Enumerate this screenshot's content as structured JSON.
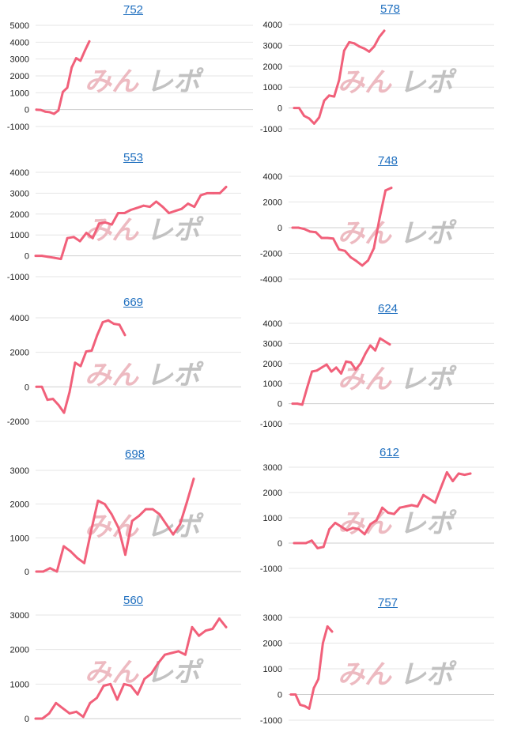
{
  "colors": {
    "line": "#f1607a",
    "title_link": "#1f6fbf",
    "grid": "#e6e6e6"
  },
  "watermark": "みんレポ",
  "chart_data": [
    {
      "type": "line",
      "title": "752",
      "yticks": [
        5000,
        4000,
        3000,
        2000,
        1000,
        0,
        -1000
      ],
      "ylim": [
        -1000,
        5000
      ],
      "values": [
        0,
        -20,
        -120,
        -150,
        -250,
        -50,
        1050,
        1300,
        2500,
        3050,
        2900,
        3500,
        4050
      ]
    },
    {
      "type": "line",
      "title": "578",
      "yticks": [
        4000,
        3000,
        2000,
        1000,
        0,
        -1000
      ],
      "ylim": [
        -1000,
        4000
      ],
      "values": [
        0,
        0,
        -380,
        -500,
        -750,
        -450,
        350,
        600,
        550,
        1350,
        2750,
        3150,
        3100,
        2950,
        2850,
        2700,
        2950,
        3400,
        3700
      ]
    },
    {
      "type": "line",
      "title": "553",
      "yticks": [
        4000,
        3000,
        2000,
        1000,
        0,
        -1000
      ],
      "ylim": [
        -1000,
        4000
      ],
      "values": [
        0,
        0,
        -50,
        -100,
        -150,
        850,
        900,
        700,
        1100,
        850,
        1550,
        1600,
        1500,
        2050,
        2050,
        2200,
        2300,
        2400,
        2350,
        2600,
        2350,
        2050,
        2150,
        2250,
        2500,
        2350,
        2900,
        3000,
        3000,
        3000,
        3300
      ]
    },
    {
      "type": "line",
      "title": "748",
      "yticks": [
        4000,
        2000,
        0,
        -2000,
        -4000
      ],
      "ylim": [
        -4000,
        4000
      ],
      "values": [
        0,
        0,
        -100,
        -300,
        -350,
        -800,
        -800,
        -850,
        -1700,
        -1800,
        -2300,
        -2600,
        -2950,
        -2550,
        -1600,
        800,
        2900,
        3100
      ]
    },
    {
      "type": "line",
      "title": "669",
      "yticks": [
        4000,
        2000,
        0,
        -2000
      ],
      "ylim": [
        -2000,
        4000
      ],
      "values": [
        0,
        0,
        -750,
        -700,
        -1050,
        -1500,
        -300,
        1400,
        1200,
        2050,
        2100,
        3000,
        3750,
        3850,
        3650,
        3600,
        3000
      ]
    },
    {
      "type": "line",
      "title": "624",
      "yticks": [
        4000,
        3000,
        2000,
        1000,
        0,
        -1000
      ],
      "ylim": [
        -1000,
        4000
      ],
      "values": [
        0,
        0,
        -50,
        800,
        1600,
        1650,
        1800,
        1950,
        1600,
        1800,
        1500,
        2100,
        2050,
        1700,
        2000,
        2500,
        2900,
        2650,
        3250,
        3100,
        2950
      ]
    },
    {
      "type": "line",
      "title": "698",
      "yticks": [
        3000,
        2000,
        1000,
        0
      ],
      "ylim": [
        0,
        3000
      ],
      "values": [
        0,
        0,
        100,
        0,
        750,
        600,
        400,
        250,
        1200,
        2100,
        2000,
        1700,
        1300,
        500,
        1500,
        1650,
        1850,
        1850,
        1700,
        1400,
        1100,
        1400,
        2050,
        2750
      ]
    },
    {
      "type": "line",
      "title": "612",
      "yticks": [
        3000,
        2000,
        1000,
        0,
        -1000
      ],
      "ylim": [
        -1000,
        3000
      ],
      "values": [
        0,
        0,
        0,
        100,
        -200,
        -150,
        550,
        800,
        650,
        500,
        600,
        550,
        350,
        750,
        900,
        1400,
        1200,
        1150,
        1400,
        1450,
        1500,
        1450,
        1900,
        1750,
        1600,
        2200,
        2800,
        2450,
        2750,
        2700,
        2750
      ]
    },
    {
      "type": "line",
      "title": "560",
      "yticks": [
        3000,
        2000,
        1000,
        0
      ],
      "ylim": [
        0,
        3000
      ],
      "values": [
        0,
        0,
        150,
        450,
        300,
        150,
        200,
        50,
        450,
        600,
        950,
        1000,
        550,
        1000,
        950,
        700,
        1150,
        1300,
        1600,
        1850,
        1900,
        1950,
        1850,
        2650,
        2400,
        2550,
        2600,
        2900,
        2650
      ]
    },
    {
      "type": "line",
      "title": "757",
      "yticks": [
        3000,
        2000,
        1000,
        0,
        -1000
      ],
      "ylim": [
        -1000,
        3000
      ],
      "values": [
        0,
        0,
        -400,
        -450,
        -550,
        250,
        600,
        2000,
        2650,
        2450
      ]
    }
  ]
}
